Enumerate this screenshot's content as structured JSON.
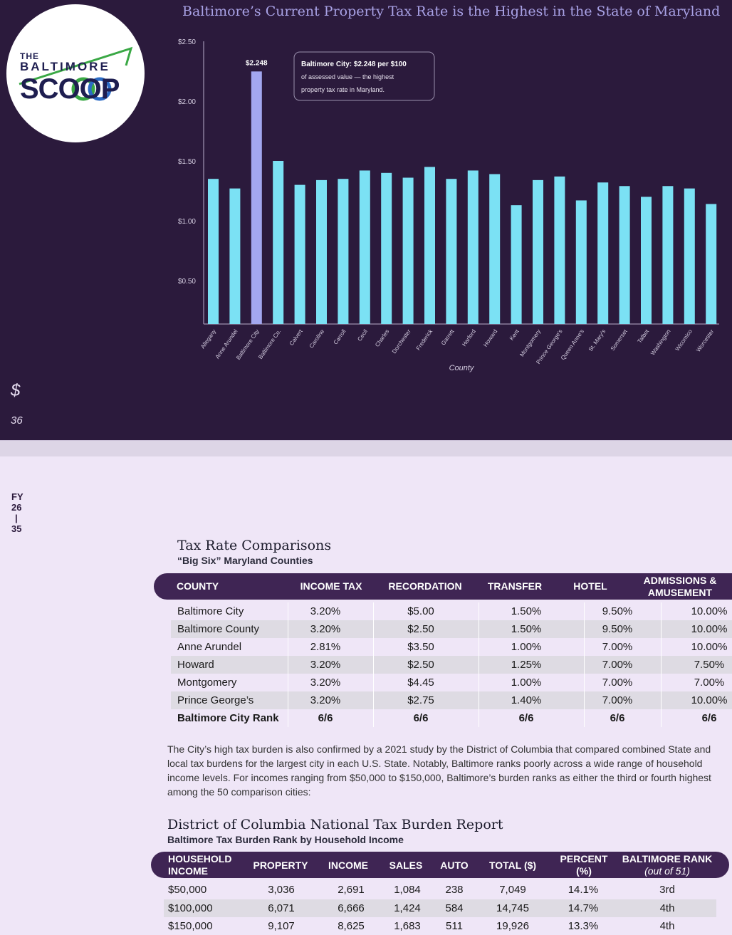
{
  "logo": {
    "the": "THE",
    "baltimore": "BALTIMORE",
    "scoop": "SCOOP"
  },
  "chart_title": "Baltimore’s Current Property Tax Rate is the Highest in the State of Maryland",
  "chart_data": {
    "type": "bar",
    "title": "Baltimore’s Current Property Tax Rate is the Highest in the State of Maryland",
    "xlabel": "County",
    "ylabel": "",
    "y_ticks": [
      "$2.50",
      "$2.00",
      "$1.50",
      "$1.00",
      "$0.50"
    ],
    "categories": [
      "Allegany",
      "Anne Arundel",
      "Baltimore City",
      "Baltimore Co.",
      "Calvert",
      "Caroline",
      "Carroll",
      "Cecil",
      "Charles",
      "Dorchester",
      "Frederick",
      "Garrett",
      "Harford",
      "Howard",
      "Kent",
      "Montgomery",
      "Prince George's",
      "Queen Anne's",
      "St. Mary's",
      "Somerset",
      "Talbot",
      "Washington",
      "Wicomico",
      "Worcester"
    ],
    "values": [
      1.35,
      1.27,
      2.248,
      1.5,
      1.3,
      1.34,
      1.35,
      1.42,
      1.4,
      1.36,
      1.45,
      1.35,
      1.42,
      1.39,
      1.13,
      1.34,
      1.37,
      1.17,
      1.32,
      1.29,
      1.2,
      1.29,
      1.27,
      1.14
    ],
    "highlight_index": 2,
    "value_label": "$2.248",
    "annotation": {
      "line1": "Baltimore City: $2.248 per $100",
      "line2": "of assessed value — the highest",
      "line3": "property tax rate in Maryland."
    },
    "colors": {
      "bar": "#7be1f4",
      "highlight": "#a3a7f0",
      "background": "#2b1a3c"
    }
  },
  "side": {
    "dollar": "$",
    "page": "36",
    "fy": [
      "FY",
      "26",
      "|",
      "35"
    ]
  },
  "table1": {
    "title": "Tax Rate Comparisons",
    "subtitle": "“Big Six” Maryland Counties",
    "headers": [
      "COUNTY",
      "INCOME TAX",
      "RECORDATION",
      "TRANSFER",
      "HOTEL",
      "ADMISSIONS & AMUSEMENT"
    ],
    "rows": [
      [
        "Baltimore City",
        "3.20%",
        "$5.00",
        "1.50%",
        "9.50%",
        "10.00%"
      ],
      [
        "Baltimore County",
        "3.20%",
        "$2.50",
        "1.50%",
        "9.50%",
        "10.00%"
      ],
      [
        "Anne Arundel",
        "2.81%",
        "$3.50",
        "1.00%",
        "7.00%",
        "10.00%"
      ],
      [
        "Howard",
        "3.20%",
        "$2.50",
        "1.25%",
        "7.00%",
        "7.50%"
      ],
      [
        "Montgomery",
        "3.20%",
        "$4.45",
        "1.00%",
        "7.00%",
        "7.00%"
      ],
      [
        "Prince George’s",
        "3.20%",
        "$2.75",
        "1.40%",
        "7.00%",
        "10.00%"
      ],
      [
        "Baltimore City Rank",
        "6/6",
        "6/6",
        "6/6",
        "6/6",
        "6/6"
      ]
    ]
  },
  "paragraph": "The City’s high tax burden is also confirmed by a 2021 study by the District of Columbia that compared combined State and local tax burdens for the largest city in each U.S. State. Notably, Baltimore ranks poorly across a wide range of household income levels. For incomes ranging from $50,000 to $150,000, Baltimore’s burden ranks as either the third or fourth highest among the 50 comparison cities:",
  "table2": {
    "title": "District of Columbia National Tax Burden Report",
    "subtitle": "Baltimore Tax Burden Rank by Household Income",
    "headers": [
      "HOUSEHOLD INCOME",
      "PROPERTY",
      "INCOME",
      "SALES",
      "AUTO",
      "TOTAL ($)",
      "PERCENT (%)",
      "BALTIMORE RANK"
    ],
    "rank_suffix": "(out of 51)",
    "rows": [
      [
        "$50,000",
        "3,036",
        "2,691",
        "1,084",
        "238",
        "7,049",
        "14.1%",
        "3rd"
      ],
      [
        "$100,000",
        "6,071",
        "6,666",
        "1,424",
        "584",
        "14,745",
        "14.7%",
        "4th"
      ],
      [
        "$150,000",
        "9,107",
        "8,625",
        "1,683",
        "511",
        "19,926",
        "13.3%",
        "4th"
      ]
    ]
  }
}
